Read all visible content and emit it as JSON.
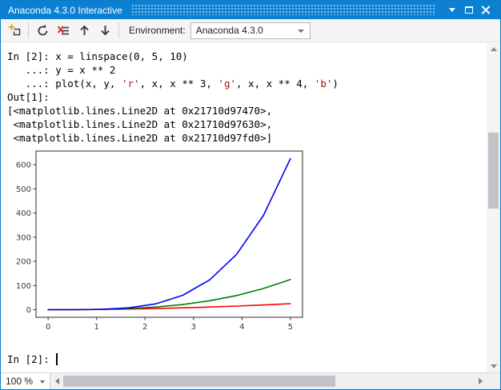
{
  "window": {
    "title": "Anaconda 4.3.0 Interactive"
  },
  "titlebar_icons": [
    "chevron-down-icon",
    "maximize-icon",
    "close-icon"
  ],
  "toolbar": {
    "environment_label": "Environment:",
    "environment_value": "Anaconda 4.3.0",
    "icons": [
      "new-interactive-window-icon",
      "reset-kernel-icon",
      "clear-screen-icon",
      "arrow-up-icon",
      "arrow-down-icon",
      "chevron-down-icon"
    ]
  },
  "console": {
    "lines": [
      {
        "segments": [
          {
            "text": "In [2]: x = linspace(0, 5, 10)",
            "style": "code"
          }
        ]
      },
      {
        "segments": [
          {
            "text": "   ...: y = x ** 2",
            "style": "code"
          }
        ]
      },
      {
        "segments": [
          {
            "text": "   ...: plot(x, y, ",
            "style": "code"
          },
          {
            "text": "'r'",
            "style": "string"
          },
          {
            "text": ", x, x ** 3, ",
            "style": "code"
          },
          {
            "text": "'g'",
            "style": "string"
          },
          {
            "text": ", x, x ** 4, ",
            "style": "code"
          },
          {
            "text": "'b'",
            "style": "string"
          },
          {
            "text": ")",
            "style": "code"
          }
        ]
      },
      {
        "segments": [
          {
            "text": "Out[1]:",
            "style": "code"
          }
        ]
      },
      {
        "segments": [
          {
            "text": "[<matplotlib.lines.Line2D at 0x21710d97470>,",
            "style": "code"
          }
        ]
      },
      {
        "segments": [
          {
            "text": " <matplotlib.lines.Line2D at 0x21710d97630>,",
            "style": "code"
          }
        ]
      },
      {
        "segments": [
          {
            "text": " <matplotlib.lines.Line2D at 0x21710d97fd0>]",
            "style": "code"
          }
        ]
      }
    ],
    "prompt": "In [2]: "
  },
  "chart_data": {
    "type": "line",
    "title": "",
    "xlabel": "",
    "ylabel": "",
    "grid": false,
    "legend": null,
    "x": [
      0,
      0.5556,
      1.1111,
      1.6667,
      2.2222,
      2.7778,
      3.3333,
      3.8889,
      4.4444,
      5
    ],
    "series": [
      {
        "name": "y = x ** 2",
        "color": "#ff0000",
        "values": [
          0,
          0.3086,
          1.2346,
          2.7778,
          4.9383,
          7.716,
          11.1111,
          15.1235,
          19.7531,
          25
        ]
      },
      {
        "name": "x ** 3",
        "color": "#008000",
        "values": [
          0,
          0.1715,
          1.3717,
          4.6296,
          10.9739,
          21.4335,
          37.037,
          58.8134,
          87.7915,
          125
        ]
      },
      {
        "name": "x ** 4",
        "color": "#0000ff",
        "values": [
          0,
          0.0953,
          1.5242,
          7.716,
          24.3865,
          59.5374,
          123.4568,
          228.7135,
          390.1844,
          625
        ]
      }
    ],
    "xticks": [
      0,
      1,
      2,
      3,
      4,
      5
    ],
    "yticks": [
      0,
      100,
      200,
      300,
      400,
      500,
      600
    ],
    "xlim": [
      -0.25,
      5.25
    ],
    "ylim": [
      -31.25,
      656.25
    ]
  },
  "statusbar": {
    "zoom_value": "100 %"
  },
  "colors": {
    "titlebar_blue": "#0c81d3",
    "window_border": "#0b7cc8",
    "string_literal": "#a31515",
    "scrollbar_thumb": "#c2c3c9",
    "toolbar_bg": "#f5f5f6"
  }
}
